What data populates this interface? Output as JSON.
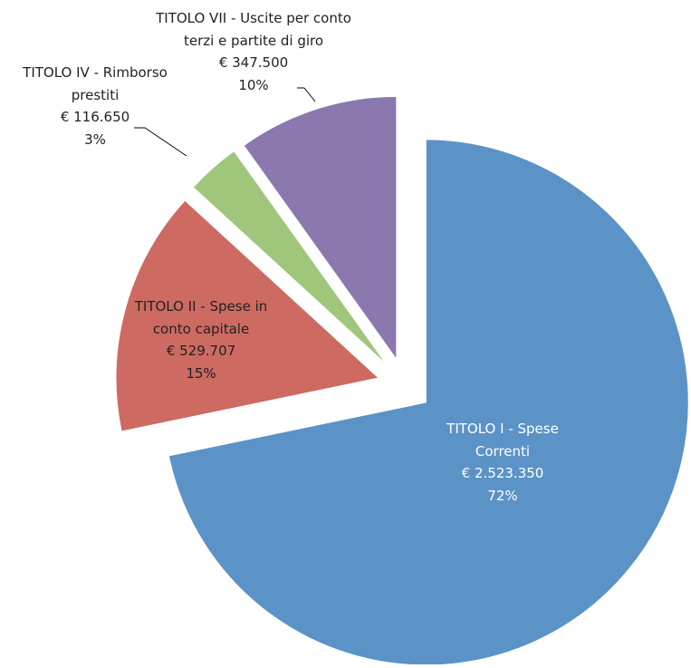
{
  "chart_data": {
    "type": "pie",
    "categories": [
      "TITOLO I - Spese Correnti",
      "TITOLO II - Spese in conto capitale",
      "TITOLO IV - Rimborso prestiti",
      "TITOLO VII - Uscite per conto terzi e partite di giro"
    ],
    "values": [
      2523350,
      529707,
      116650,
      347500
    ],
    "value_labels": [
      "€ 2.523.350",
      "€ 529.707",
      "€ 116.650",
      "€ 347.500"
    ],
    "percents": [
      {
        "value": 72,
        "label": "72%"
      },
      {
        "value": 15,
        "label": "15%"
      },
      {
        "value": 3,
        "label": "3%"
      },
      {
        "value": 10,
        "label": "10%"
      }
    ],
    "colors": [
      "#5b93c7",
      "#cd6a62",
      "#9fc67b",
      "#8a78af"
    ]
  }
}
